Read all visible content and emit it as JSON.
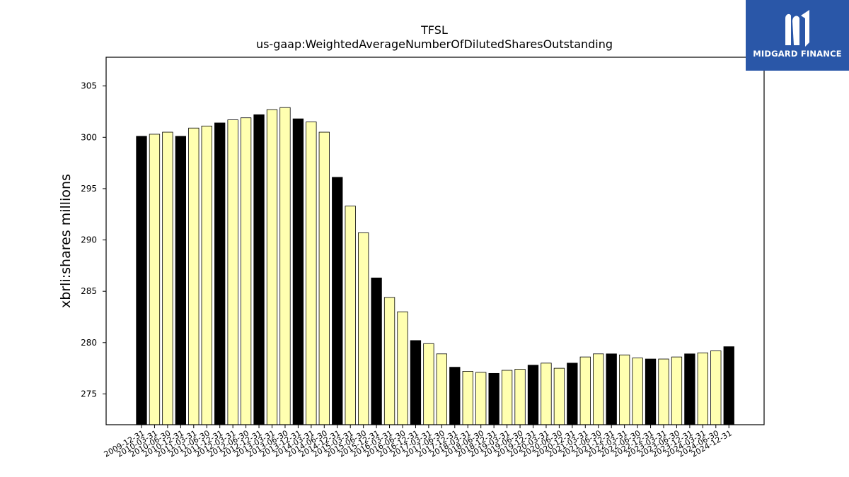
{
  "chart_data": {
    "type": "bar",
    "title": "TFSL",
    "subtitle": "us-gaap:WeightedAverageNumberOfDilutedSharesOutstanding",
    "xlabel": "",
    "ylabel": "xbrli:shares millions",
    "ylim": [
      272.0,
      307.8
    ],
    "yticks": [
      275,
      280,
      285,
      290,
      295,
      300,
      305
    ],
    "grid": false,
    "colors": {
      "annual": "#000000",
      "quarterly": "#ffffb0",
      "edge": "#000000"
    },
    "categories": [
      "2009-12-31",
      "2010-03-31",
      "2010-06-30",
      "2010-12-31",
      "2011-03-31",
      "2011-06-30",
      "2011-12-31",
      "2012-03-31",
      "2012-06-30",
      "2012-12-31",
      "2013-03-31",
      "2013-06-30",
      "2013-12-31",
      "2014-03-31",
      "2014-06-30",
      "2014-12-31",
      "2015-03-31",
      "2015-06-30",
      "2015-12-31",
      "2016-03-31",
      "2016-06-30",
      "2016-12-31",
      "2017-03-31",
      "2017-06-30",
      "2017-12-31",
      "2018-03-31",
      "2018-06-30",
      "2018-12-31",
      "2019-03-31",
      "2019-06-30",
      "2019-12-31",
      "2020-03-31",
      "2020-06-30",
      "2020-12-31",
      "2021-03-31",
      "2021-06-30",
      "2021-12-31",
      "2022-03-31",
      "2022-06-30",
      "2022-12-31",
      "2023-03-31",
      "2023-06-30",
      "2023-12-31",
      "2024-03-31",
      "2024-06-30",
      "2024-12-31"
    ],
    "values": [
      300.1,
      300.3,
      300.5,
      300.1,
      300.9,
      301.1,
      301.4,
      301.7,
      301.9,
      302.2,
      302.7,
      302.9,
      301.8,
      301.5,
      300.5,
      296.1,
      293.3,
      290.7,
      286.3,
      284.4,
      283.0,
      280.2,
      279.9,
      278.9,
      277.6,
      277.2,
      277.1,
      277.0,
      277.3,
      277.4,
      277.8,
      278.0,
      277.5,
      278.0,
      278.6,
      278.9,
      278.9,
      278.8,
      278.5,
      278.4,
      278.4,
      278.6,
      278.9,
      279.0,
      279.2,
      279.6
    ],
    "kinds": [
      "annual",
      "quarterly",
      "quarterly",
      "annual",
      "quarterly",
      "quarterly",
      "annual",
      "quarterly",
      "quarterly",
      "annual",
      "quarterly",
      "quarterly",
      "annual",
      "quarterly",
      "quarterly",
      "annual",
      "quarterly",
      "quarterly",
      "annual",
      "quarterly",
      "quarterly",
      "annual",
      "quarterly",
      "quarterly",
      "annual",
      "quarterly",
      "quarterly",
      "annual",
      "quarterly",
      "quarterly",
      "annual",
      "quarterly",
      "quarterly",
      "annual",
      "quarterly",
      "quarterly",
      "annual",
      "quarterly",
      "quarterly",
      "annual",
      "quarterly",
      "quarterly",
      "annual",
      "quarterly",
      "quarterly",
      "annual"
    ]
  },
  "logo": {
    "brand": "MIDGARD FINANCE",
    "icon": "midgard-logo-icon"
  }
}
